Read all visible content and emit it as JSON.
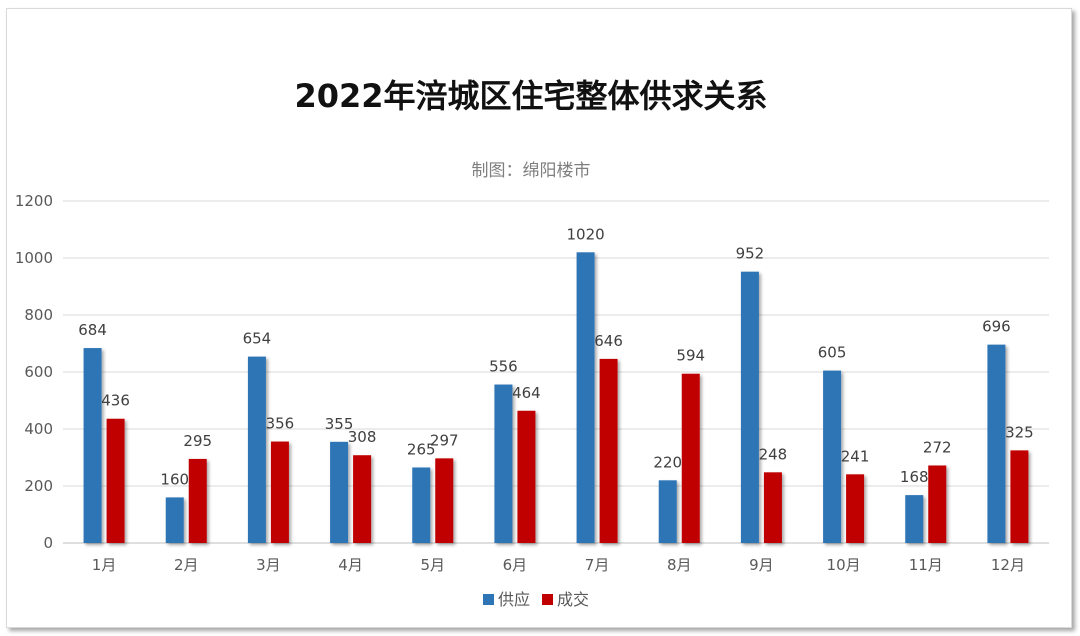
{
  "chart_data": {
    "type": "bar",
    "title": "2022年涪城区住宅整体供求关系",
    "subtitle": "制图：绵阳楼市",
    "categories": [
      "1月",
      "2月",
      "3月",
      "4月",
      "5月",
      "6月",
      "7月",
      "8月",
      "9月",
      "10月",
      "11月",
      "12月"
    ],
    "series": [
      {
        "name": "供应",
        "color": "#2e75b6",
        "values": [
          684,
          160,
          654,
          355,
          265,
          556,
          1020,
          220,
          952,
          605,
          168,
          696
        ]
      },
      {
        "name": "成交",
        "color": "#c00000",
        "values": [
          436,
          295,
          356,
          308,
          297,
          464,
          646,
          594,
          248,
          241,
          272,
          325
        ]
      }
    ],
    "ylim": [
      0,
      1200
    ],
    "yticks": [
      0,
      200,
      400,
      600,
      800,
      1000,
      1200
    ],
    "grid": true,
    "legend": "bottom"
  }
}
